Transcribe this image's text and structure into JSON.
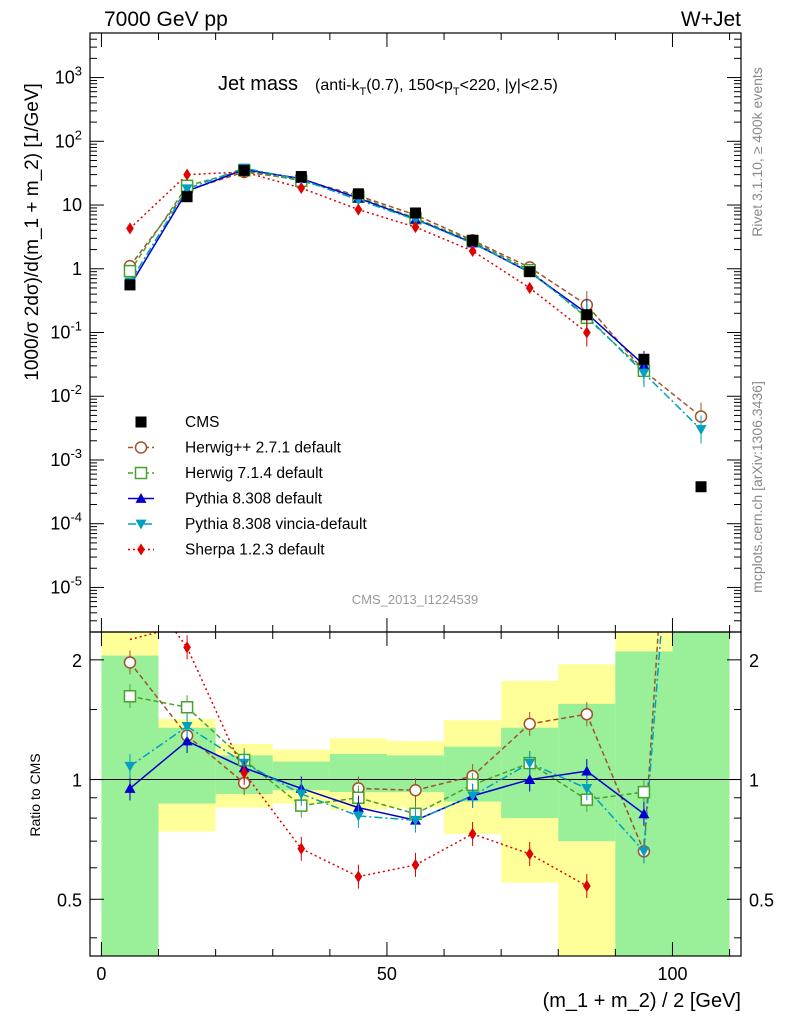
{
  "header": {
    "left": "7000 GeV pp",
    "right": "W+Jet"
  },
  "side_labels": {
    "rivet": "Rivet 3.1.10, ≥ 400k events",
    "mcplots": "mcplots.cern.ch [arXiv:1306.3436]"
  },
  "analysis_id": "CMS_2013_I1224539",
  "chart_data": {
    "type": "scatter",
    "title_main": "Jet mass",
    "title_details": "(anti-k_T(0.7), 150<p_T<220, |y|<2.5)",
    "xlabel": "(m_1 + m_2) / 2 [GeV]",
    "ylabel": "1000/σ 2dσ)/d(m_1 + m_2) [1/GeV]",
    "ratio_ylabel": "Ratio to CMS",
    "xlim": [
      -2,
      112
    ],
    "ylim": [
      2e-06,
      5000
    ],
    "ylog": true,
    "ratio_ylim": [
      0.36,
      2.35
    ],
    "ratio_ylog": true,
    "x_ticks": [
      0,
      50,
      100
    ],
    "y_tick_labels": [
      "10^3",
      "10^2",
      "10",
      "1",
      "10^-1",
      "10^-2",
      "10^-3",
      "10^-4",
      "10^-5"
    ],
    "ratio_tick_labels": [
      "2",
      "1",
      "0.5"
    ],
    "x": [
      5,
      15,
      25,
      35,
      45,
      55,
      65,
      75,
      85,
      95,
      105
    ],
    "bin_edges": [
      0,
      10,
      20,
      30,
      40,
      50,
      60,
      70,
      80,
      90,
      100,
      110
    ],
    "reference": {
      "name": "CMS",
      "values": [
        0.56,
        13.5,
        35.0,
        28.0,
        15.0,
        7.5,
        2.8,
        0.9,
        0.19,
        0.038,
        0.00038
      ]
    },
    "uncertainty_band_ratio": {
      "yellow": [
        [
          0.36,
          2.35
        ],
        [
          0.74,
          1.42
        ],
        [
          0.85,
          1.23
        ],
        [
          0.87,
          1.19
        ],
        [
          0.84,
          1.27
        ],
        [
          0.85,
          1.25
        ],
        [
          0.73,
          1.41
        ],
        [
          0.55,
          1.77
        ],
        [
          0.36,
          1.95
        ],
        [
          0.36,
          2.35
        ],
        [
          0.36,
          2.35
        ]
      ],
      "green": [
        [
          0.36,
          2.05
        ],
        [
          0.87,
          1.35
        ],
        [
          0.92,
          1.15
        ],
        [
          0.94,
          1.11
        ],
        [
          0.93,
          1.16
        ],
        [
          0.93,
          1.15
        ],
        [
          0.88,
          1.21
        ],
        [
          0.8,
          1.35
        ],
        [
          0.7,
          1.55
        ],
        [
          0.36,
          2.1
        ],
        [
          0.36,
          2.35
        ]
      ]
    },
    "series": [
      {
        "name": "Herwig++ 2.7.1 default",
        "color": "#a0522d",
        "dash": "5,3",
        "marker": "open-circle",
        "values": [
          1.1,
          17.0,
          33.0,
          25.0,
          14.0,
          7.0,
          2.8,
          1.05,
          0.27,
          0.025,
          0.0048
        ],
        "ratio": [
          1.97,
          1.29,
          0.98,
          null,
          0.95,
          0.94,
          1.02,
          1.38,
          1.46,
          0.66,
          null
        ]
      },
      {
        "name": "Herwig 7.1.4 default",
        "color": "#4aa02c",
        "dash": "5,3",
        "marker": "open-square",
        "values": [
          0.92,
          20.0,
          35.0,
          24.0,
          13.5,
          6.2,
          2.7,
          0.95,
          0.17,
          0.025,
          null
        ],
        "ratio": [
          1.62,
          1.52,
          1.12,
          0.86,
          0.9,
          0.82,
          0.97,
          1.1,
          0.89,
          0.93,
          null
        ]
      },
      {
        "name": "Pythia 8.308 default",
        "color": "#0000cc",
        "dash": "",
        "marker": "filled-triangle-up",
        "values": [
          0.54,
          16.5,
          36.0,
          26.0,
          12.8,
          6.0,
          2.55,
          0.88,
          0.2,
          0.031,
          null
        ],
        "ratio": [
          0.95,
          1.25,
          1.07,
          0.95,
          0.85,
          0.79,
          0.91,
          1.0,
          1.05,
          0.82,
          null
        ]
      },
      {
        "name": "Pythia 8.308 vincia-default",
        "color": "#00a0c0",
        "dash": "8,3,2,3",
        "marker": "filled-triangle-down",
        "values": [
          0.62,
          18.0,
          38.0,
          25.0,
          12.0,
          5.9,
          2.5,
          0.9,
          0.18,
          0.023,
          0.003
        ],
        "ratio": [
          1.08,
          1.36,
          1.1,
          0.92,
          0.81,
          0.79,
          0.91,
          1.1,
          0.95,
          0.66,
          null
        ]
      },
      {
        "name": "Sherpa 1.2.3 default",
        "color": "#e00000",
        "dash": "2,3",
        "marker": "filled-diamond",
        "values": [
          4.3,
          30.0,
          33.0,
          18.5,
          8.5,
          4.5,
          1.9,
          0.5,
          0.1,
          null,
          null
        ],
        "ratio": [
          null,
          2.15,
          1.04,
          0.67,
          0.57,
          0.61,
          0.73,
          0.65,
          0.54,
          null,
          null
        ]
      }
    ]
  }
}
